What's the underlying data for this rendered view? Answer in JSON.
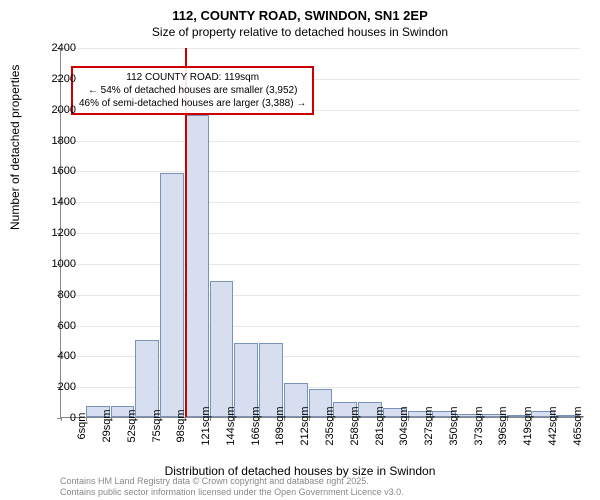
{
  "title": "112, COUNTY ROAD, SWINDON, SN1 2EP",
  "subtitle": "Size of property relative to detached houses in Swindon",
  "y_axis": {
    "label": "Number of detached properties",
    "min": 0,
    "max": 2400,
    "tick_step": 200,
    "ticks": [
      0,
      200,
      400,
      600,
      800,
      1000,
      1200,
      1400,
      1600,
      1800,
      2000,
      2200,
      2400
    ]
  },
  "x_axis": {
    "label": "Distribution of detached houses by size in Swindon",
    "ticks": [
      "6sqm",
      "29sqm",
      "52sqm",
      "75sqm",
      "98sqm",
      "121sqm",
      "144sqm",
      "166sqm",
      "189sqm",
      "212sqm",
      "235sqm",
      "258sqm",
      "281sqm",
      "304sqm",
      "327sqm",
      "350sqm",
      "373sqm",
      "396sqm",
      "419sqm",
      "442sqm",
      "465sqm"
    ]
  },
  "histogram": {
    "type": "histogram",
    "values": [
      0,
      70,
      70,
      500,
      1580,
      1960,
      880,
      480,
      480,
      220,
      180,
      100,
      100,
      60,
      40,
      40,
      20,
      20,
      10,
      40,
      10
    ],
    "bar_fill": "#d6def0",
    "bar_stroke": "#7a93b8",
    "background_color": "#ffffff",
    "grid_color": "#e8e8e8"
  },
  "marker": {
    "position_index": 5,
    "color": "#cc0000"
  },
  "annotation": {
    "title": "112 COUNTY ROAD: 119sqm",
    "line1": "← 54% of detached houses are smaller (3,952)",
    "line2": "46% of semi-detached houses are larger (3,388) →",
    "border_color": "#cc0000"
  },
  "footer": {
    "line1": "Contains HM Land Registry data © Crown copyright and database right 2025.",
    "line2": "Contains public sector information licensed under the Open Government Licence v3.0."
  }
}
